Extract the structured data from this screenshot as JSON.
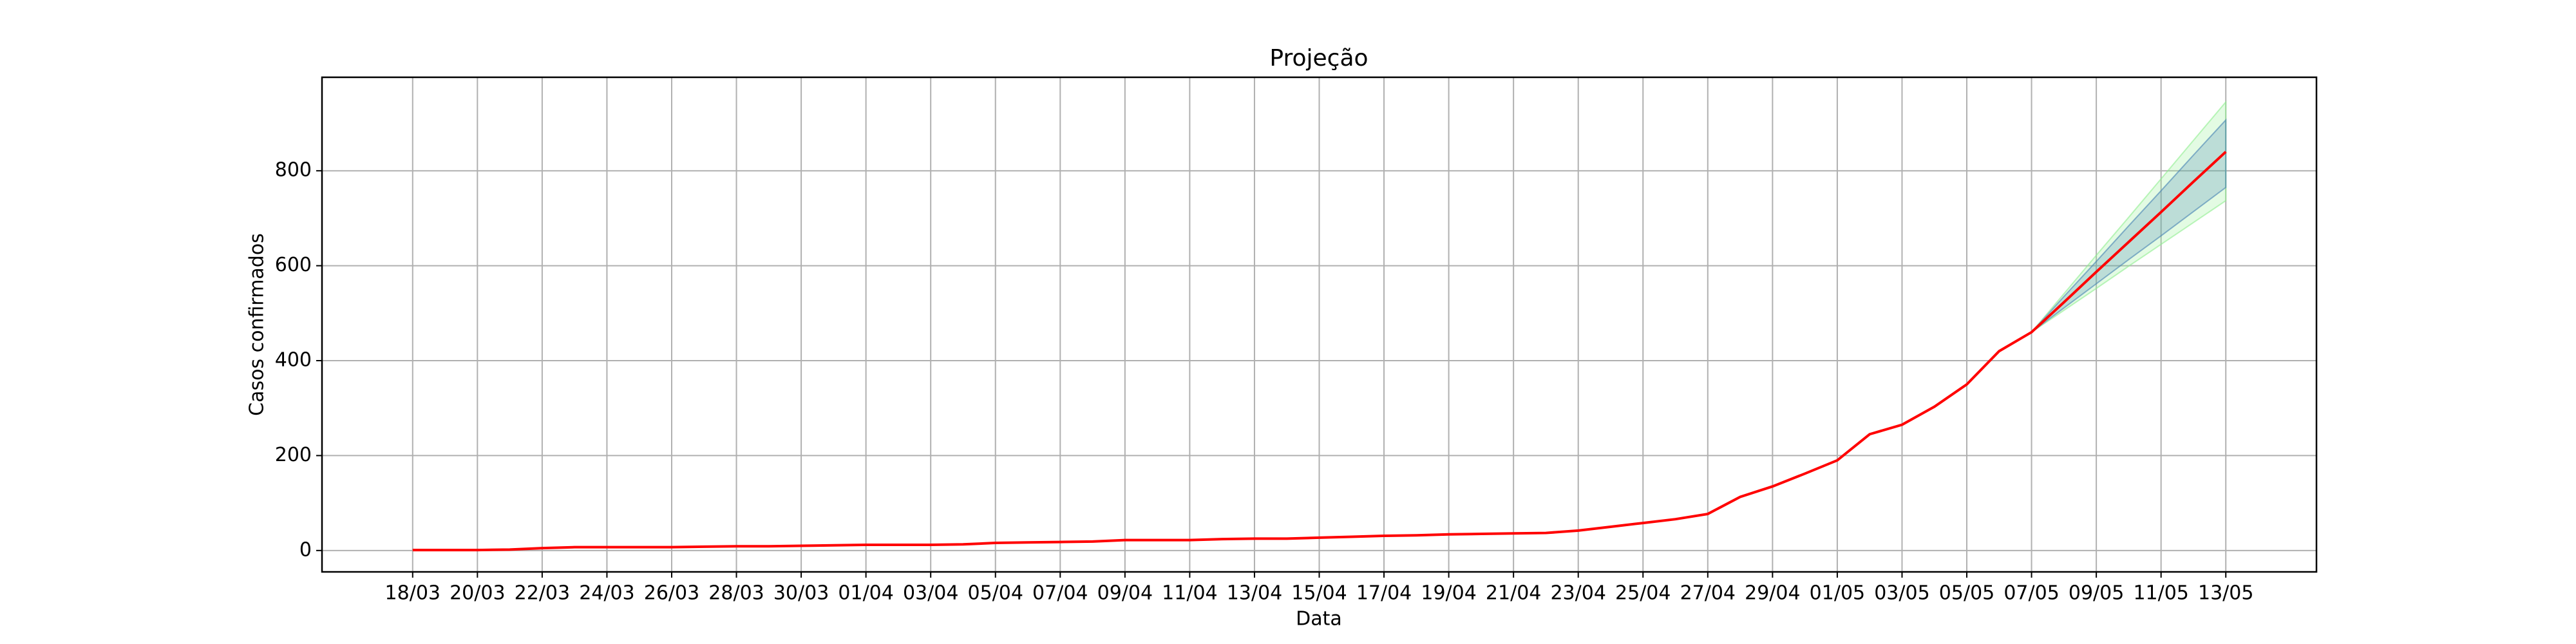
{
  "chart_data": {
    "type": "line",
    "title": "Projeção",
    "x_label": "Data",
    "y_label": "Casos confirmados",
    "categories": [
      "18/03",
      null,
      "20/03",
      null,
      "22/03",
      null,
      "24/03",
      null,
      "26/03",
      null,
      "28/03",
      null,
      "30/03",
      null,
      "01/04",
      null,
      "03/04",
      null,
      "05/04",
      null,
      "07/04",
      null,
      "09/04",
      null,
      "11/04",
      null,
      "13/04",
      null,
      "15/04",
      null,
      "17/04",
      null,
      "19/04",
      null,
      "21/04",
      null,
      "23/04",
      null,
      "25/04",
      null,
      "27/04",
      null,
      "29/04",
      null,
      "01/05",
      null,
      "03/05",
      null,
      "05/05",
      null,
      "07/05",
      null,
      "09/05",
      null,
      "11/05",
      null,
      "13/05"
    ],
    "values": [
      1,
      1,
      1,
      2,
      5,
      7,
      7,
      7,
      7,
      8,
      9,
      9,
      10,
      11,
      12,
      12,
      12,
      13,
      16,
      17,
      18,
      19,
      22,
      22,
      22,
      24,
      25,
      25,
      27,
      29,
      31,
      32,
      34,
      35,
      36,
      37,
      42,
      50,
      58,
      66,
      77,
      113,
      135,
      162,
      190,
      245,
      265,
      303,
      350,
      420,
      460,
      523,
      587,
      650,
      713,
      777,
      840
    ],
    "color": "#ff0000",
    "bands": [
      {
        "color": "#90ee90",
        "upper": [
          null,
          null,
          null,
          null,
          null,
          null,
          null,
          null,
          null,
          null,
          null,
          null,
          null,
          null,
          null,
          null,
          null,
          null,
          null,
          null,
          null,
          null,
          null,
          null,
          null,
          null,
          null,
          null,
          null,
          null,
          null,
          null,
          null,
          null,
          null,
          null,
          null,
          null,
          null,
          null,
          null,
          null,
          null,
          null,
          null,
          null,
          null,
          null,
          null,
          null,
          460,
          541,
          622,
          702,
          783,
          864,
          945
        ],
        "lower": [
          null,
          null,
          null,
          null,
          null,
          null,
          null,
          null,
          null,
          null,
          null,
          null,
          null,
          null,
          null,
          null,
          null,
          null,
          null,
          null,
          null,
          null,
          null,
          null,
          null,
          null,
          null,
          null,
          null,
          null,
          null,
          null,
          null,
          null,
          null,
          null,
          null,
          null,
          null,
          null,
          null,
          null,
          null,
          null,
          null,
          null,
          null,
          null,
          null,
          null,
          460,
          506,
          552,
          599,
          645,
          691,
          737
        ]
      },
      {
        "color": "#4682b4",
        "upper": [
          null,
          null,
          null,
          null,
          null,
          null,
          null,
          null,
          null,
          null,
          null,
          null,
          null,
          null,
          null,
          null,
          null,
          null,
          null,
          null,
          null,
          null,
          null,
          null,
          null,
          null,
          null,
          null,
          null,
          null,
          null,
          null,
          null,
          null,
          null,
          null,
          null,
          null,
          null,
          null,
          null,
          null,
          null,
          null,
          null,
          null,
          null,
          null,
          null,
          null,
          460,
          535,
          609,
          684,
          758,
          833,
          907
        ],
        "lower": [
          null,
          null,
          null,
          null,
          null,
          null,
          null,
          null,
          null,
          null,
          null,
          null,
          null,
          null,
          null,
          null,
          null,
          null,
          null,
          null,
          null,
          null,
          null,
          null,
          null,
          null,
          null,
          null,
          null,
          null,
          null,
          null,
          null,
          null,
          null,
          null,
          null,
          null,
          null,
          null,
          null,
          null,
          null,
          null,
          null,
          null,
          null,
          null,
          null,
          null,
          460,
          511,
          562,
          613,
          663,
          714,
          765
        ]
      }
    ],
    "xlim": [
      -2.8,
      58.8
    ],
    "ylim": [
      -45,
      997
    ],
    "yticks": [
      0,
      200,
      400,
      600,
      800
    ],
    "grid": true
  }
}
